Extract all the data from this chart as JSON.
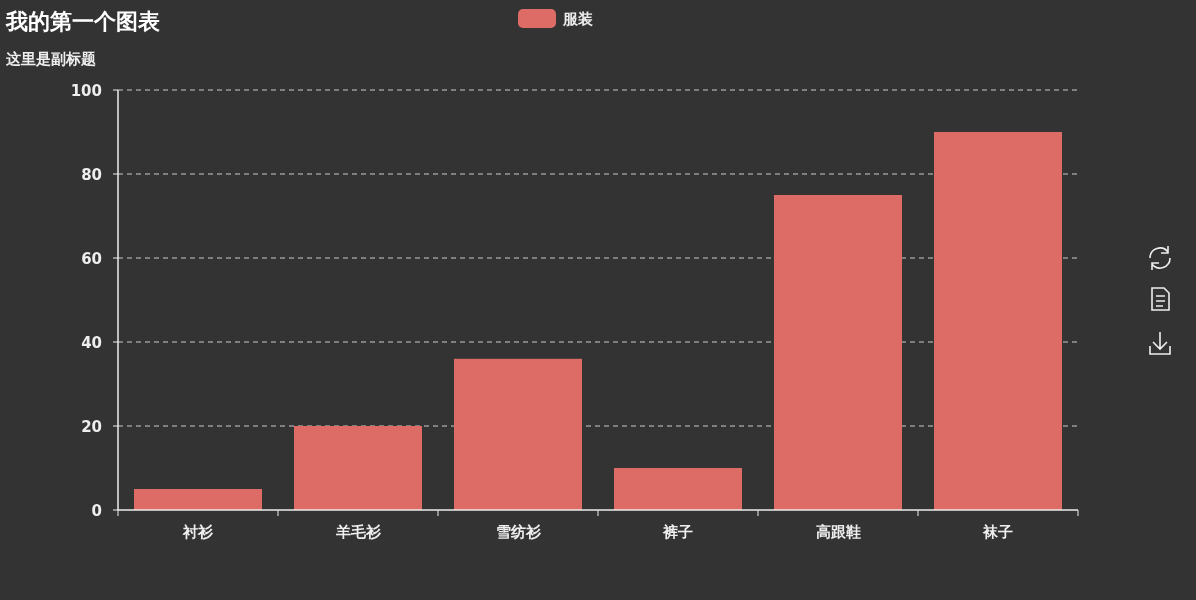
{
  "chart_data": {
    "type": "bar",
    "title": "我的第一个图表",
    "subtitle": "这里是副标题",
    "categories": [
      "衬衫",
      "羊毛衫",
      "雪纺衫",
      "裤子",
      "高跟鞋",
      "袜子"
    ],
    "series": [
      {
        "name": "服装",
        "color": "#dd6b66",
        "values": [
          5,
          20,
          36,
          10,
          75,
          90
        ]
      }
    ],
    "ylim": [
      0,
      100
    ],
    "yticks": [
      0,
      20,
      40,
      60,
      80,
      100
    ],
    "grid": "y",
    "legend": "top"
  }
}
